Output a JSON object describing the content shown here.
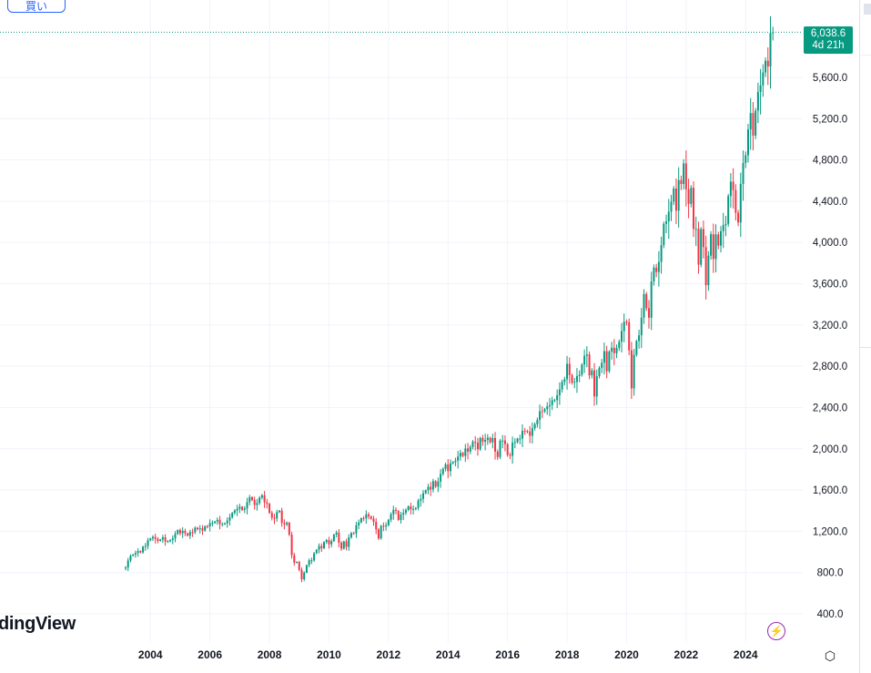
{
  "toolbar": {
    "buy_label": "買い"
  },
  "branding": {
    "logo_text": "dingView"
  },
  "last_price": {
    "value": "6,038.6",
    "countdown": "4d 21h"
  },
  "colors": {
    "up": "#089981",
    "down": "#f23645",
    "grid": "#f0f3fa",
    "last_line": "#089981",
    "bolt": "#9c27b0"
  },
  "icons": {
    "bolt": "lightning-icon",
    "settings": "settings-icon"
  },
  "chart_data": {
    "type": "candlestick",
    "title": "",
    "interval": "monthly",
    "start": "2003-03",
    "xticks": [
      "2004",
      "2006",
      "2008",
      "2010",
      "2012",
      "2014",
      "2016",
      "2018",
      "2020",
      "2022",
      "2024"
    ],
    "yticks": [
      "400.0",
      "800.0",
      "1,200.0",
      "1,600.0",
      "2,000.0",
      "2,400.0",
      "2,800.0",
      "3,200.0",
      "3,600.0",
      "4,000.0",
      "4,400.0",
      "4,800.0",
      "5,200.0",
      "5,600.0"
    ],
    "ylim": [
      300,
      6300
    ],
    "close": [
      848,
      916,
      963,
      975,
      990,
      1008,
      996,
      1050,
      1058,
      1112,
      1131,
      1145,
      1126,
      1107,
      1121,
      1141,
      1102,
      1104,
      1115,
      1130,
      1174,
      1212,
      1181,
      1204,
      1181,
      1157,
      1192,
      1191,
      1234,
      1220,
      1229,
      1207,
      1249,
      1248,
      1280,
      1281,
      1295,
      1311,
      1270,
      1270,
      1277,
      1304,
      1336,
      1378,
      1401,
      1418,
      1438,
      1407,
      1421,
      1482,
      1531,
      1503,
      1455,
      1474,
      1527,
      1549,
      1481,
      1468,
      1379,
      1331,
      1323,
      1386,
      1400,
      1280,
      1267,
      1283,
      1166,
      969,
      896,
      903,
      826,
      735,
      798,
      873,
      919,
      919,
      987,
      1021,
      1057,
      1036,
      1096,
      1115,
      1074,
      1104,
      1169,
      1187,
      1089,
      1031,
      1102,
      1049,
      1141,
      1183,
      1181,
      1258,
      1286,
      1327,
      1326,
      1364,
      1345,
      1321,
      1292,
      1219,
      1131,
      1253,
      1247,
      1258,
      1312,
      1366,
      1408,
      1398,
      1310,
      1362,
      1379,
      1407,
      1441,
      1412,
      1416,
      1426,
      1498,
      1515,
      1569,
      1598,
      1631,
      1606,
      1686,
      1633,
      1682,
      1757,
      1806,
      1848,
      1783,
      1859,
      1872,
      1884,
      1924,
      1960,
      1931,
      2003,
      1972,
      2018,
      2068,
      2059,
      1995,
      2105,
      2068,
      2086,
      2107,
      2063,
      2104,
      1972,
      1920,
      2079,
      2080,
      2044,
      1940,
      1932,
      2060,
      2065,
      2097,
      2099,
      2174,
      2171,
      2168,
      2126,
      2199,
      2239,
      2279,
      2364,
      2363,
      2384,
      2412,
      2423,
      2470,
      2472,
      2519,
      2575,
      2648,
      2674,
      2824,
      2714,
      2641,
      2648,
      2705,
      2718,
      2816,
      2902,
      2914,
      2712,
      2760,
      2507,
      2704,
      2784,
      2834,
      2946,
      2752,
      2942,
      2980,
      2926,
      2977,
      3038,
      3141,
      3231,
      3226,
      2954,
      2585,
      2912,
      3044,
      3100,
      3271,
      3500,
      3363,
      3270,
      3622,
      3756,
      3714,
      3811,
      3973,
      4181,
      4204,
      4298,
      4395,
      4523,
      4308,
      4605,
      4567,
      4766,
      4516,
      4374,
      4530,
      4132,
      4132,
      3785,
      4130,
      3955,
      3586,
      3872,
      4080,
      3840,
      4077,
      3970,
      4109,
      4169,
      4180,
      4450,
      4589,
      4508,
      4288,
      4194,
      4568,
      4770,
      4846,
      5096,
      5254,
      5036,
      5278,
      5460,
      5522,
      5648,
      5762,
      5705,
      6032,
      6038.6
    ],
    "first_open": 841,
    "last_close": 6038.6
  }
}
